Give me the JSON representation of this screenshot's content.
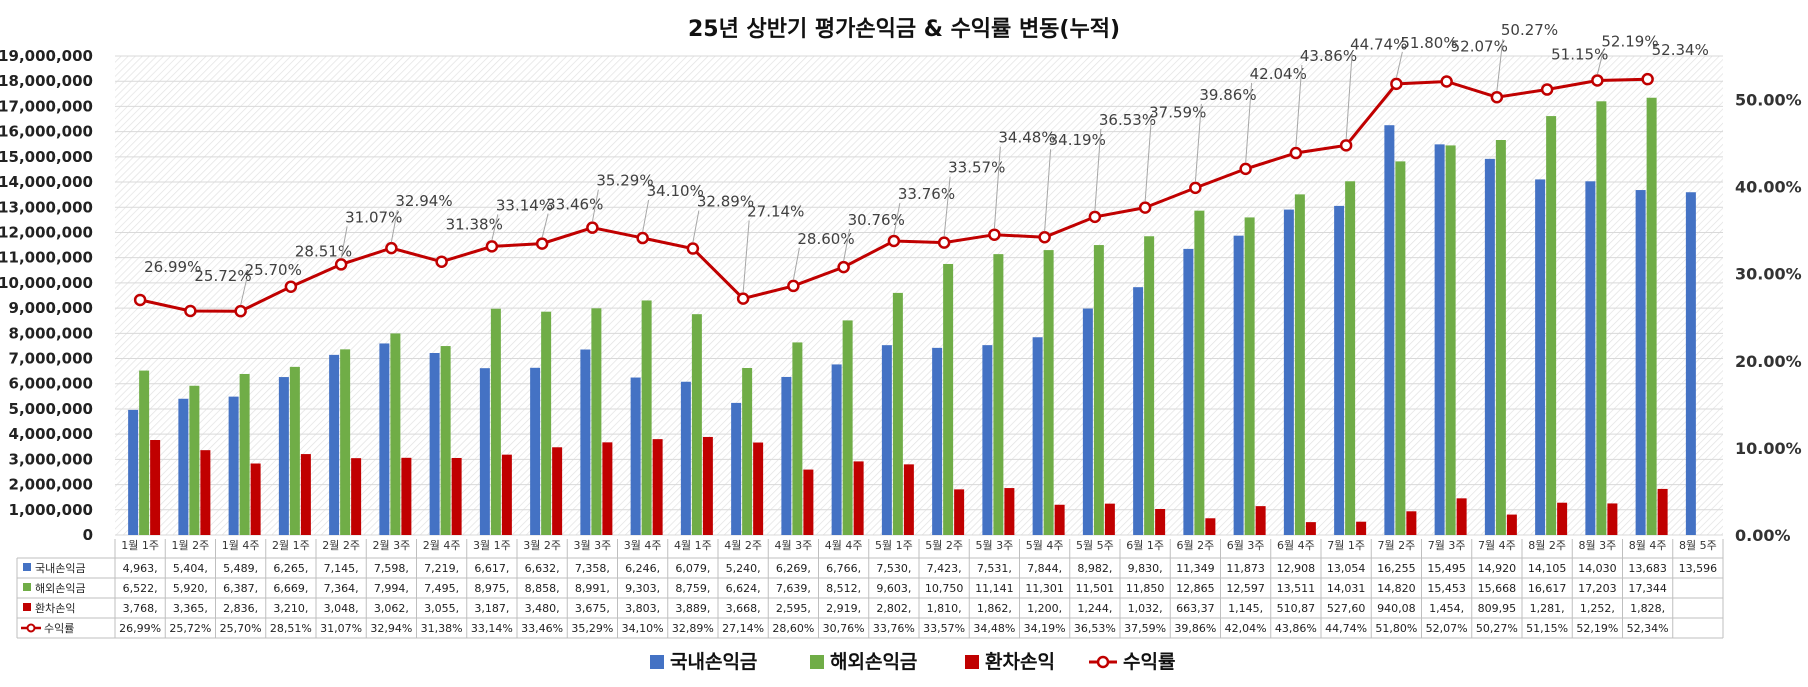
{
  "chart_data": {
    "type": "bar",
    "title": "25년 상반기 평가손익금 & 수익률 변동(누적)",
    "categories": [
      "1월 1주",
      "1월 2주",
      "1월 4주",
      "2월 1주",
      "2월 2주",
      "2월 3주",
      "2월 4주",
      "3월 1주",
      "3월 2주",
      "3월 3주",
      "3월 4주",
      "4월 1주",
      "4월 2주",
      "4월 3주",
      "4월 4주",
      "5월 1주",
      "5월 2주",
      "5월 3주",
      "5월 4주",
      "5월 5주",
      "6월 1주",
      "6월 2주",
      "6월 3주",
      "6월 4주",
      "7월 1주",
      "7월 2주",
      "7월 3주",
      "7월 4주",
      "8월 2주",
      "8월 3주",
      "8월 4주",
      "8월 5주"
    ],
    "y_left": {
      "min": 0,
      "max": 19000000,
      "step": 1000000
    },
    "y_right": {
      "min": 0,
      "max": 55,
      "ticks": [
        "0.00%",
        "10.00%",
        "20.00%",
        "30.00%",
        "40.00%",
        "50.00%"
      ]
    },
    "series": [
      {
        "name": "국내손익금",
        "type": "bar",
        "color": "#4472C4",
        "values": [
          4963000,
          5404000,
          5489000,
          6265000,
          7145000,
          7598000,
          7219000,
          6617000,
          6632000,
          7358000,
          6246000,
          6079000,
          5240000,
          6269000,
          6766000,
          7530000,
          7423000,
          7531000,
          7844000,
          8982000,
          9830000,
          11349000,
          11873000,
          12908000,
          13054000,
          16255000,
          15495000,
          14920000,
          14105000,
          14030000,
          13683000,
          13596000
        ],
        "table": [
          "4,963,",
          "5,404,",
          "5,489,",
          "6,265,",
          "7,145,",
          "7,598,",
          "7,219,",
          "6,617,",
          "6,632,",
          "7,358,",
          "6,246,",
          "6,079,",
          "5,240,",
          "6,269,",
          "6,766,",
          "7,530,",
          "7,423,",
          "7,531,",
          "7,844,",
          "8,982,",
          "9,830,",
          "11,349",
          "11,873",
          "12,908",
          "13,054",
          "16,255",
          "15,495",
          "14,920",
          "14,105",
          "14,030",
          "13,683",
          "13,596"
        ]
      },
      {
        "name": "해외손익금",
        "type": "bar",
        "color": "#70AD47",
        "values": [
          6522000,
          5920000,
          6387000,
          6669000,
          7364000,
          7994000,
          7495000,
          8975000,
          8858000,
          8991000,
          9303000,
          8759000,
          6624000,
          7639000,
          8512000,
          9603000,
          10750000,
          11141000,
          11301000,
          11501000,
          11850000,
          12865000,
          12597000,
          13511000,
          14031000,
          14820000,
          15453000,
          15668000,
          16617000,
          17203000,
          17344000,
          null
        ],
        "table": [
          "6,522,",
          "5,920,",
          "6,387,",
          "6,669,",
          "7,364,",
          "7,994,",
          "7,495,",
          "8,975,",
          "8,858,",
          "8,991,",
          "9,303,",
          "8,759,",
          "6,624,",
          "7,639,",
          "8,512,",
          "9,603,",
          "10,750",
          "11,141",
          "11,301",
          "11,501",
          "11,850",
          "12,865",
          "12,597",
          "13,511",
          "14,031",
          "14,820",
          "15,453",
          "15,668",
          "16,617",
          "17,203",
          "17,344",
          ""
        ]
      },
      {
        "name": "환차손익",
        "type": "bar",
        "color": "#C00000",
        "values": [
          3768000,
          3365000,
          2836000,
          3210000,
          3048000,
          3062000,
          3055000,
          3187000,
          3480000,
          3675000,
          3803000,
          3889000,
          3668000,
          2595000,
          2919000,
          2802000,
          1810000,
          1862000,
          1200000,
          1244000,
          1032000,
          663370,
          1145000,
          510870,
          527600,
          940080,
          1454000,
          809950,
          1281000,
          1252000,
          1828000,
          null
        ],
        "table": [
          "3,768,",
          "3,365,",
          "2,836,",
          "3,210,",
          "3,048,",
          "3,062,",
          "3,055,",
          "3,187,",
          "3,480,",
          "3,675,",
          "3,803,",
          "3,889,",
          "3,668,",
          "2,595,",
          "2,919,",
          "2,802,",
          "1,810,",
          "1,862,",
          "1,200,",
          "1,244,",
          "1,032,",
          "663,37",
          "1,145,",
          "510,87",
          "527,60",
          "940,08",
          "1,454,",
          "809,95",
          "1,281,",
          "1,252,",
          "1,828,",
          ""
        ]
      },
      {
        "name": "수익률",
        "type": "line",
        "color": "#C00000",
        "axis": "right",
        "values": [
          26.99,
          25.72,
          25.7,
          28.51,
          31.07,
          32.94,
          31.38,
          33.14,
          33.46,
          35.29,
          34.1,
          32.89,
          27.14,
          28.6,
          30.76,
          33.76,
          33.57,
          34.48,
          34.19,
          36.53,
          37.59,
          39.86,
          42.04,
          43.86,
          44.74,
          51.8,
          52.07,
          50.27,
          51.15,
          52.19,
          52.34,
          null
        ],
        "labels": [
          "26.99%",
          "25.72%",
          "25.70%",
          "28.51%",
          "31.07%",
          "32.94%",
          "31.38%",
          "33.14%",
          "33.46%",
          "35.29%",
          "34.10%",
          "32.89%",
          "27.14%",
          "28.60%",
          "30.76%",
          "33.76%",
          "33.57%",
          "34.48%",
          "34.19%",
          "36.53%",
          "37.59%",
          "39.86%",
          "42.04%",
          "43.86%",
          "44.74%",
          "51.80%",
          "52.07%",
          "50.27%",
          "51.15%",
          "52.19%",
          "52.34%",
          ""
        ],
        "table": [
          "26,99%",
          "25,72%",
          "25,70%",
          "28,51%",
          "31,07%",
          "32,94%",
          "31,38%",
          "33,14%",
          "33,46%",
          "35,29%",
          "34,10%",
          "32,89%",
          "27,14%",
          "28,60%",
          "30,76%",
          "33,76%",
          "33,57%",
          "34,48%",
          "34,19%",
          "36,53%",
          "37,59%",
          "39,86%",
          "42,04%",
          "43,86%",
          "44,74%",
          "51,80%",
          "52,07%",
          "50,27%",
          "51,15%",
          "52,19%",
          "52,34%",
          ""
        ]
      }
    ],
    "legend_position": "bottom",
    "grid": true
  }
}
